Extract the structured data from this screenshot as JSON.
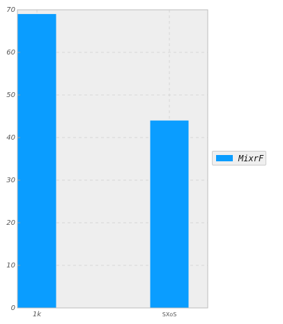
{
  "chart_data": {
    "type": "bar",
    "categories": [
      "1k",
      "SXoS"
    ],
    "series": [
      {
        "name": "MixrF",
        "values": [
          69,
          44
        ]
      }
    ],
    "title": "",
    "xlabel": "",
    "ylabel": "",
    "ylim": [
      0,
      70
    ],
    "yticks": [
      0,
      10,
      20,
      30,
      40,
      50,
      60,
      70
    ],
    "grid": true,
    "legend_position": "right"
  },
  "colors": {
    "bar": "#0a9dff",
    "plot_background": "#eeeeee",
    "grid": "#d6d6d6",
    "tick_text": "#555555"
  }
}
